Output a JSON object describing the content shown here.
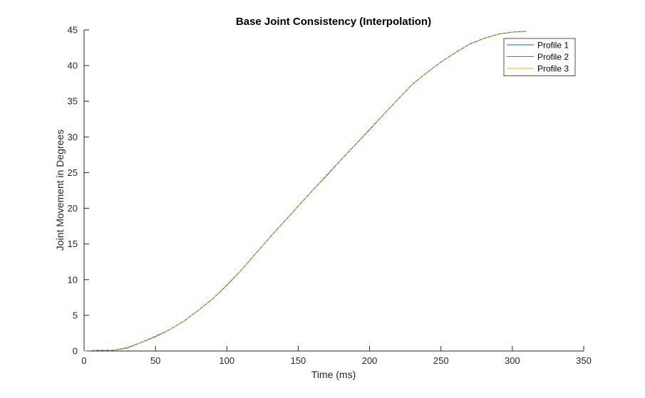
{
  "chart_data": {
    "type": "line",
    "title": "Base Joint Consistency (Interpolation)",
    "xlabel": "Time (ms)",
    "ylabel": "Joint Movement in Degrees",
    "xlim": [
      0,
      350
    ],
    "ylim": [
      0,
      45
    ],
    "xticks": [
      0,
      50,
      100,
      150,
      200,
      250,
      300,
      350
    ],
    "yticks": [
      0,
      5,
      10,
      15,
      20,
      25,
      30,
      35,
      40,
      45
    ],
    "grid": false,
    "legend_position": "top-right",
    "series": [
      {
        "name": "Profile 1",
        "color": "#0072BD",
        "x": [
          0,
          10,
          20,
          30,
          40,
          50,
          60,
          70,
          80,
          90,
          100,
          110,
          120,
          130,
          140,
          150,
          160,
          170,
          180,
          190,
          200,
          210,
          220,
          230,
          240,
          250,
          260,
          270,
          280,
          290,
          300,
          310
        ],
        "y": [
          0,
          0.1,
          0.1,
          0.4,
          1.2,
          2.0,
          3.0,
          4.2,
          5.7,
          7.3,
          9.2,
          11.3,
          13.6,
          15.9,
          18.1,
          20.3,
          22.5,
          24.6,
          26.8,
          28.9,
          31.0,
          33.2,
          35.3,
          37.4,
          39.0,
          40.5,
          41.8,
          43.0,
          43.8,
          44.4,
          44.7,
          44.8
        ]
      },
      {
        "name": "Profile 2",
        "color": "#D95319",
        "x": [
          0,
          10,
          20,
          30,
          40,
          50,
          60,
          70,
          80,
          90,
          100,
          110,
          120,
          130,
          140,
          150,
          160,
          170,
          180,
          190,
          200,
          210,
          220,
          230,
          240,
          250,
          260,
          270,
          280,
          290,
          300,
          310
        ],
        "y": [
          0,
          0.1,
          0.1,
          0.5,
          1.2,
          2.1,
          3.0,
          4.2,
          5.7,
          7.3,
          9.3,
          11.3,
          13.6,
          15.9,
          18.1,
          20.3,
          22.5,
          24.7,
          26.8,
          28.9,
          31.1,
          33.2,
          35.3,
          37.4,
          39.0,
          40.5,
          41.8,
          43.0,
          43.8,
          44.4,
          44.7,
          44.8
        ]
      },
      {
        "name": "Profile 3",
        "color": "#EDB120",
        "x": [
          0,
          10,
          20,
          30,
          40,
          50,
          60,
          70,
          80,
          90,
          100,
          110,
          120,
          130,
          140,
          150,
          160,
          170,
          180,
          190,
          200,
          210,
          220,
          230,
          240,
          250,
          260,
          270,
          280,
          290,
          300,
          310
        ],
        "y": [
          0,
          0.1,
          0.1,
          0.4,
          1.2,
          2.0,
          3.0,
          4.2,
          5.7,
          7.3,
          9.2,
          11.3,
          13.6,
          15.9,
          18.1,
          20.3,
          22.5,
          24.6,
          26.8,
          28.9,
          31.0,
          33.2,
          35.3,
          37.4,
          39.0,
          40.5,
          41.8,
          43.0,
          43.8,
          44.4,
          44.7,
          44.8
        ]
      }
    ]
  }
}
